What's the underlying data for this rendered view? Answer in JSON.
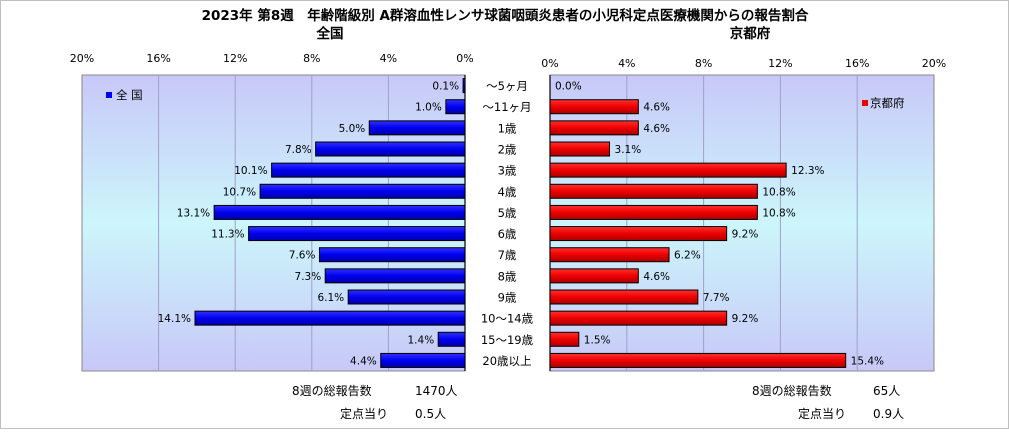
{
  "title": "2023年 第8週　年齢階級別 A群溶血性レンサ球菌咽頭炎患者の小児科定点医療機関からの報告割合",
  "chart_data": [
    {
      "type": "bar",
      "orientation": "horizontal",
      "direction": "reversed",
      "subtitle": "全国",
      "legend": "全 国",
      "legend_position": "top-left",
      "xlim": [
        0,
        20
      ],
      "ticks": [
        "20%",
        "16%",
        "12%",
        "8%",
        "4%",
        "0%"
      ],
      "color": "#0000ff",
      "categories": [
        "～5ヶ月",
        "～11ヶ月",
        "1歳",
        "2歳",
        "3歳",
        "4歳",
        "5歳",
        "6歳",
        "7歳",
        "8歳",
        "9歳",
        "10～14歳",
        "15～19歳",
        "20歳以上"
      ],
      "values": [
        0.1,
        1.0,
        5.0,
        7.8,
        10.1,
        10.7,
        13.1,
        11.3,
        7.6,
        7.3,
        6.1,
        14.1,
        1.4,
        4.4
      ],
      "labels": [
        "0.1%",
        "1.0%",
        "5.0%",
        "7.8%",
        "10.1%",
        "10.7%",
        "13.1%",
        "11.3%",
        "7.6%",
        "7.3%",
        "6.1%",
        "14.1%",
        "1.4%",
        "4.4%"
      ]
    },
    {
      "type": "bar",
      "orientation": "horizontal",
      "subtitle": "京都府",
      "legend": "京都府",
      "legend_position": "top-right",
      "xlim": [
        0,
        20
      ],
      "ticks": [
        "0%",
        "4%",
        "8%",
        "12%",
        "16%",
        "20%"
      ],
      "color": "#ff0000",
      "values": [
        0.0,
        4.6,
        4.6,
        3.1,
        12.3,
        10.8,
        10.8,
        9.2,
        6.2,
        4.6,
        7.7,
        9.2,
        1.5,
        15.4
      ],
      "labels": [
        "0.0%",
        "4.6%",
        "4.6%",
        "3.1%",
        "12.3%",
        "10.8%",
        "10.8%",
        "9.2%",
        "6.2%",
        "4.6%",
        "7.7%",
        "9.2%",
        "1.5%",
        "15.4%"
      ]
    }
  ],
  "summary": {
    "national": {
      "total_label": "8週の総報告数",
      "total_value": "1470人",
      "per_label": "定点当り",
      "per_value": "0.5人"
    },
    "kyoto": {
      "total_label": "8週の総報告数",
      "total_value": "65人",
      "per_label": "定点当り",
      "per_value": "0.9人"
    }
  }
}
